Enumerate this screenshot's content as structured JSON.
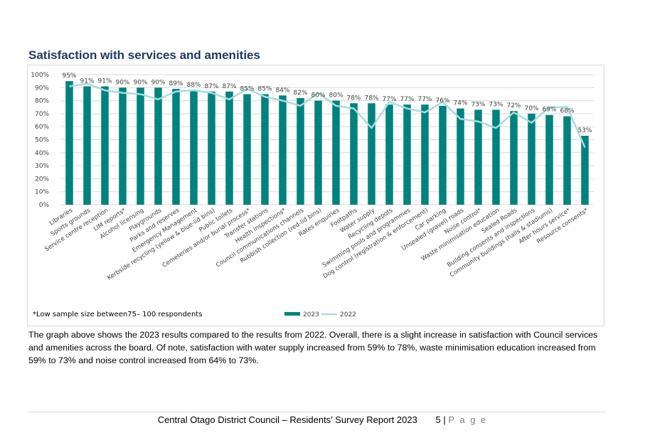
{
  "title": "Satisfaction with services and amenities",
  "footnote": "*Low sample size between75– 100 respondents",
  "paragraph": "The graph above shows the 2023 results compared to the results from 2022. Overall, there is a slight increase in satisfaction with Council services and amenities across the board. Of note, satisfaction with water supply increased from 59% to 78%, waste minimisation education increased from 59% to 73% and noise control increased from 64% to 73%.",
  "footer": {
    "text": "Central Otago District Council – Residents’ Survey Report 2023",
    "page_number": "5",
    "separator": "|",
    "page_word": "P a g e"
  },
  "chart_data": {
    "type": "bar",
    "categories": [
      "Libraries",
      "Sports grounds",
      "Service centre reception",
      "LIM reports*",
      "Alcohol licensing",
      "Playgrounds",
      "Parks and reserves",
      "Emergency Management",
      "Kerbside recycling (yellow & blue-lid bins)",
      "Public toilets",
      "Cemeteries and/or burial process*",
      "Transfer stations",
      "Health inspections*",
      "Council communications channels",
      "Rubbish collection (red-lid bins)",
      "Rates enquiries",
      "Footpaths",
      "Water supply",
      "Recycling depots",
      "Swimming pools and programmes",
      "Dog control (registration & enforcement)",
      "Car parking",
      "Unsealed (gravel) roads",
      "Noise control*",
      "Waste minimisation education",
      "Sealed Roads",
      "Building consents and inspections",
      "Community buildings (halls & stadiums)",
      "After hours service*",
      "Resource consents*"
    ],
    "series": [
      {
        "name": "2023",
        "type": "bar",
        "color": "#00827f",
        "values": [
          95,
          91,
          91,
          90,
          90,
          90,
          89,
          88,
          87,
          87,
          85,
          85,
          84,
          82,
          80,
          80,
          78,
          78,
          77,
          77,
          77,
          76,
          74,
          73,
          73,
          72,
          70,
          69,
          68,
          53
        ],
        "labels": [
          "95%",
          "91%",
          "91%",
          "90%",
          "90%",
          "90%",
          "89%",
          "88%",
          "87%",
          "87%",
          "85%",
          "85%",
          "84%",
          "82%",
          "80%",
          "80%",
          "78%",
          "78%",
          "77%",
          "77%",
          "77%",
          "76%",
          "74%",
          "73%",
          "73%",
          "72%",
          "70%",
          "69%",
          "68%",
          "53%"
        ]
      },
      {
        "name": "2022",
        "type": "line",
        "color": "#a8dcdc",
        "values": [
          91,
          93,
          88,
          86,
          85,
          81,
          87,
          88,
          86,
          81,
          89,
          83,
          80,
          76,
          86,
          76,
          74,
          59,
          79,
          74,
          71,
          79,
          66,
          64,
          59,
          71,
          63,
          75,
          75,
          44
        ]
      }
    ],
    "ylim": [
      0,
      100
    ],
    "yticks": [
      "0%",
      "10%",
      "20%",
      "30%",
      "40%",
      "50%",
      "60%",
      "70%",
      "80%",
      "90%",
      "100%"
    ],
    "grid": true,
    "legend_position": "bottom"
  }
}
